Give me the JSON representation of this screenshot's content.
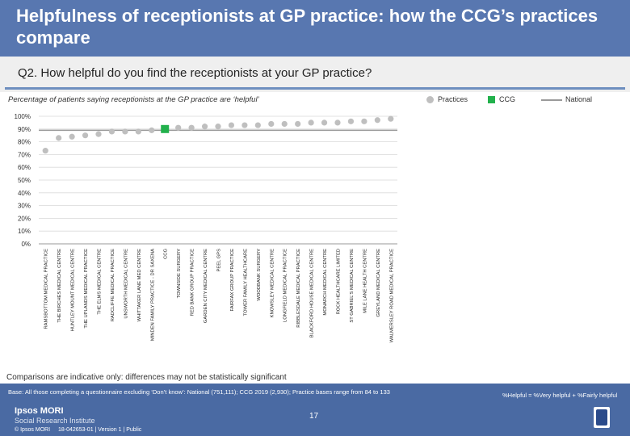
{
  "title": "Helpfulness of receptionists at GP practice: how the CCG’s practices compare",
  "question": "Q2. How helpful do you find the receptionists at your GP practice?",
  "subtitle": "Percentage of patients saying receptionists at the GP practice are ‘helpful’",
  "legend": {
    "practices": "Practices",
    "ccg": "CCG",
    "national": "National"
  },
  "colors": {
    "header": "#5877b0",
    "practice_dot": "#bfbfbf",
    "ccg_marker": "#22b14c",
    "national_line": "#9a9a9a"
  },
  "chart_data": {
    "type": "scatter",
    "ylim": [
      0,
      100
    ],
    "yticks": [
      "0%",
      "10%",
      "20%",
      "30%",
      "40%",
      "50%",
      "60%",
      "70%",
      "80%",
      "90%",
      "100%"
    ],
    "categories": [
      "RAMSBOTTOM MEDICAL PRACTICE",
      "THE BIRCHES MEDICAL CENTRE",
      "HUNTLEY MOUNT MEDICAL CENTRE",
      "THE UPLANDS MEDICAL PRACTICE",
      "THE ELMS MEDICAL CENTRE",
      "RADCLIFFE MEDICAL PRACTICE",
      "UNSWORTH MEDICAL CENTRE",
      "WHITTAKER LANE MED CENTRE",
      "MINDEN FAMILY PRACTICE - DR SAXENA",
      "CCG",
      "TOWNSIDE SURGERY",
      "RED BANK GROUP PRACTICE",
      "GARDEN CITY MEDICAL CENTRE",
      "PEEL GPS",
      "FAIRFAX GROUP PRACTICE",
      "TOWER FAMILY HEALTHCARE",
      "WOODBANK SURGERY",
      "KNOWSLEY MEDICAL CENTRE",
      "LONGFIELD MEDICAL PRACTICE",
      "RIBBLESDALE MEDICAL PRACTICE",
      "BLACKFORD HOUSE MEDICAL CENTRE",
      "MONARCH MEDICAL CENTRE",
      "ROCK HEALTHCARE LIMITED",
      "ST GABRIEL'S MEDICAL CENTRE",
      "MILE LANE HEALTH CENTRE",
      "GREYLAND MEDICAL CENTRE",
      "WALMERSLEY ROAD MEDICAL PRACTICE"
    ],
    "values": [
      73,
      83,
      84,
      85,
      86,
      88,
      88,
      88,
      89,
      90,
      91,
      91,
      92,
      92,
      93,
      93,
      93,
      94,
      94,
      94,
      95,
      95,
      95,
      96,
      96,
      97,
      98
    ],
    "ccg_index": 9,
    "national": 89
  },
  "comparisons_note": "Comparisons are indicative only: differences may not be statistically significant",
  "base_note": "Base: All those completing a questionnaire excluding ‘Don’t know’: National (751,111); CCG 2019 (2,930); Practice bases range from 84 to 133",
  "definition": "%Helpful = %Very helpful + %Fairly helpful",
  "page_number": "17",
  "logo_line1": "Ipsos MORI",
  "logo_line2": "Social Research Institute",
  "copyright": "© Ipsos MORI",
  "job_ref": "18-042653-01 | Version 1 | Public"
}
